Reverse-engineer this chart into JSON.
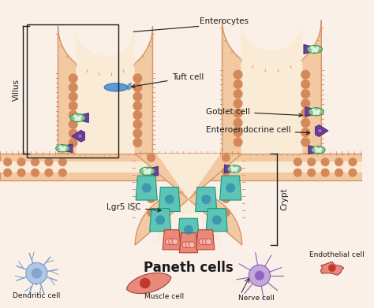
{
  "labels": {
    "enterocytes": "Enterocytes",
    "tuft_cell": "Tuft cell",
    "goblet_cell": "Goblet cell",
    "enteroendocrine": "Enteroendocrine cell",
    "villus": "Villus",
    "crypt": "Crypt",
    "lgr5": "Lgr5 ISC",
    "paneth": "Paneth cells",
    "dendritic": "Dendritic cell",
    "muscle": "Muscle cell",
    "nerve": "Nerve cell",
    "endothelial": "Endothelial cell"
  },
  "colors": {
    "bg": "#FAF0E8",
    "tissue_fill": "#F2C9A0",
    "tissue_border": "#D4956A",
    "tissue_inner": "#FAEBD7",
    "goblet_fill": "#7DC98F",
    "goblet_granule": "#E8F5E9",
    "entero_fill": "#6B3FA0",
    "entero_border": "#4A2870",
    "tuft_fill": "#5B9BD5",
    "tuft_border": "#2E75B6",
    "paneth_fill": "#E8897A",
    "paneth_border": "#C0392B",
    "paneth_granule": "#F5B7B1",
    "stem_fill": "#5EC4B6",
    "stem_border": "#1A9880",
    "stem_nucleus": "#2E86AB",
    "dot_color": "#D4895A",
    "line_color": "#1A1A1A",
    "text_color": "#1A1A1A",
    "dendritic_body": "#AEC6E8",
    "dendritic_nucleus": "#7B9DC8",
    "nerve_body": "#C3A8D8",
    "nerve_nucleus": "#8B5EBE",
    "muscle_fill": "#E8897A",
    "muscle_nucleus": "#C0392B",
    "endothelial_fill": "#E8897A",
    "villus_cilia": "#D4956A"
  }
}
